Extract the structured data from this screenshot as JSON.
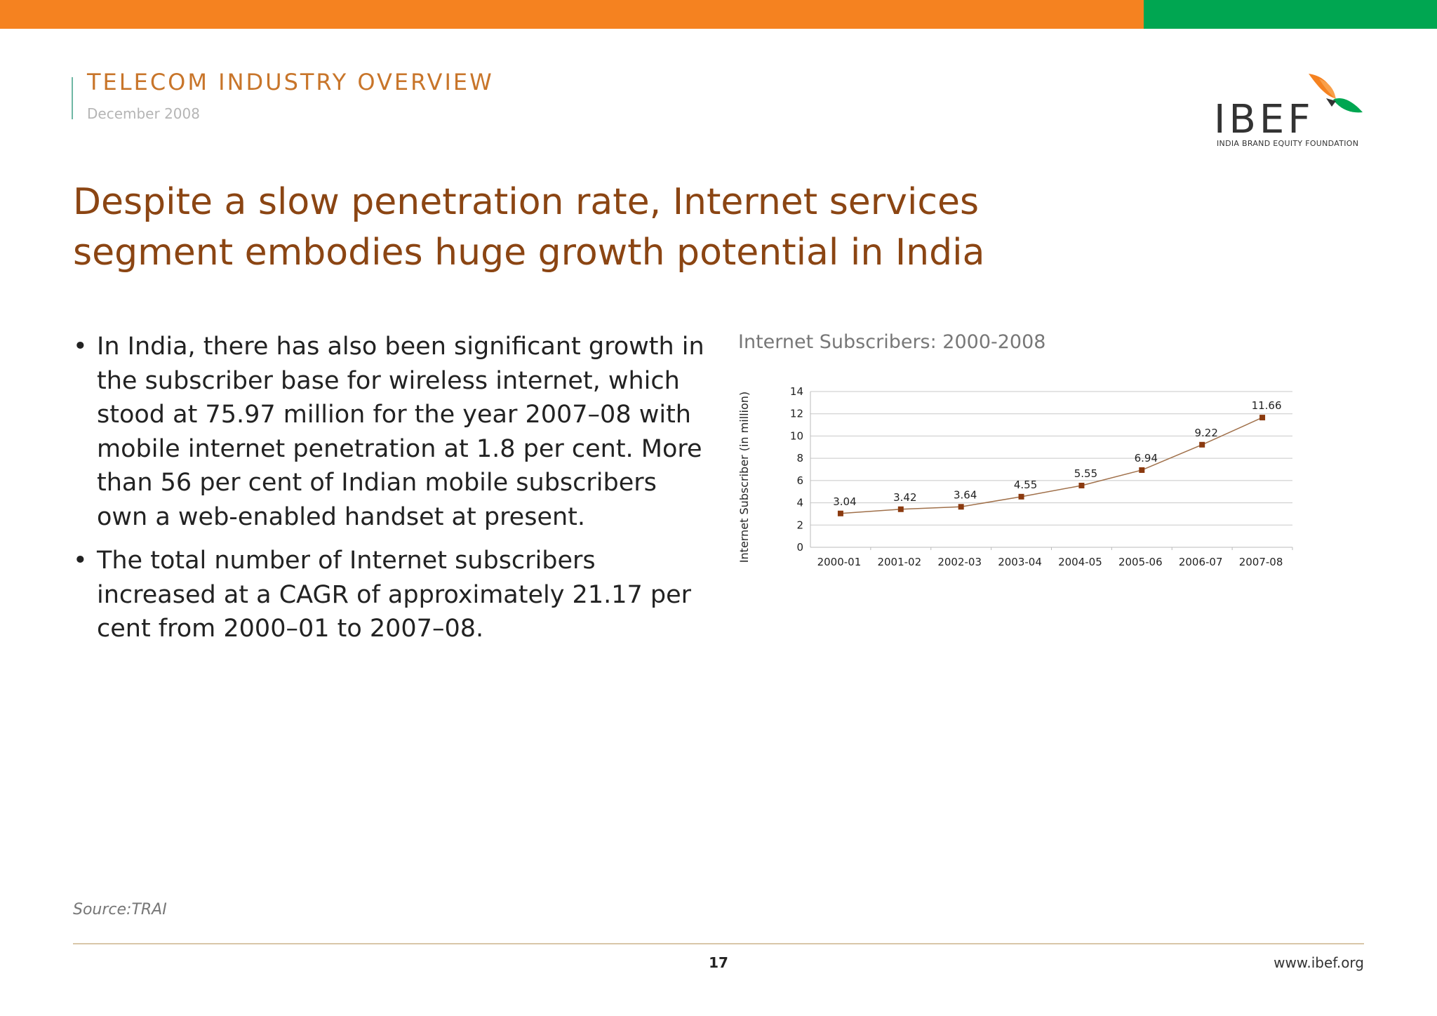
{
  "header": {
    "section_title": "TELECOM INDUSTRY OVERVIEW",
    "date": "December 2008",
    "top_bar_colors": [
      "#f58220",
      "#00a651"
    ]
  },
  "logo": {
    "name": "IBEF",
    "tagline": "INDIA BRAND EQUITY FOUNDATION",
    "icon": "bird-logo-icon"
  },
  "headline": "Despite a slow penetration rate, Internet services segment embodies huge growth potential in India",
  "bullets": [
    "In India, there has also been significant growth in the subscriber base for wireless internet, which stood at 75.97 million for the year 2007–08 with mobile internet penetration at 1.8 per cent. More than 56 per cent of Indian mobile subscribers own a web-enabled handset at present.",
    "The total number of Internet subscribers increased at a CAGR of approximately 21.17 per cent from 2000–01 to 2007–08."
  ],
  "chart_data": {
    "type": "line",
    "title": "Internet Subscribers: 2000-2008",
    "xlabel": "",
    "ylabel": "Internet Subscriber (in million)",
    "categories": [
      "2000-01",
      "2001-02",
      "2002-03",
      "2003-04",
      "2004-05",
      "2005-06",
      "2006-07",
      "2007-08"
    ],
    "values": [
      3.04,
      3.42,
      3.64,
      4.55,
      5.55,
      6.94,
      9.22,
      11.66
    ],
    "data_labels": [
      "3.04",
      "3.42",
      "3.64",
      "4.55",
      "5.55",
      "6.94",
      "9.22",
      "11.66"
    ],
    "ylim": [
      0,
      14
    ],
    "yticks": [
      "0",
      "2",
      "4",
      "6",
      "8",
      "10",
      "12",
      "14"
    ],
    "grid": true,
    "legend": false,
    "line_color": "#a0704a",
    "marker_color": "#8b3a0f"
  },
  "footer": {
    "source": "Source:TRAI",
    "page_number": "17",
    "website": "www.ibef.org"
  }
}
